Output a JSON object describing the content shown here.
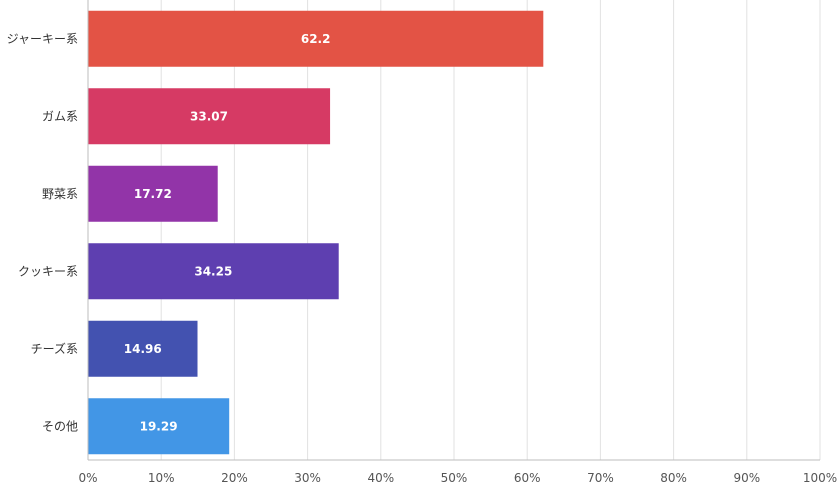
{
  "chart_data": {
    "type": "bar",
    "orientation": "horizontal",
    "categories": [
      "ジャーキー系",
      "ガム系",
      "野菜系",
      "クッキー系",
      "チーズ系",
      "その他"
    ],
    "values": [
      62.2,
      33.07,
      17.72,
      34.25,
      14.96,
      19.29
    ],
    "colors": [
      "#e35345",
      "#d63a64",
      "#9234a8",
      "#5e3fb0",
      "#4352b0",
      "#4296e6"
    ],
    "xlim": [
      0,
      100
    ],
    "x_ticks": [
      "0%",
      "10%",
      "20%",
      "30%",
      "40%",
      "50%",
      "60%",
      "70%",
      "80%",
      "90%",
      "100%"
    ],
    "grid": true,
    "data_labels": [
      "62.2",
      "33.07",
      "17.72",
      "34.25",
      "14.96",
      "19.29"
    ],
    "title": "",
    "xlabel": "",
    "ylabel": ""
  }
}
